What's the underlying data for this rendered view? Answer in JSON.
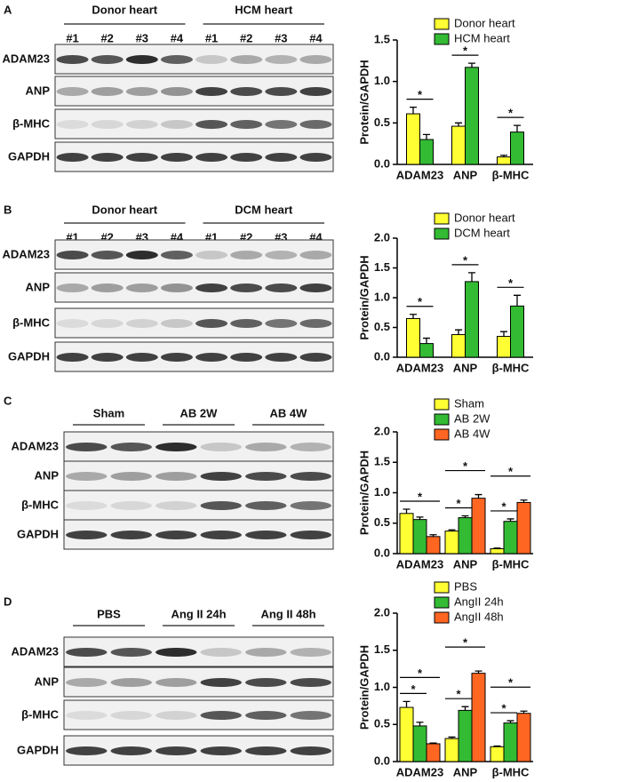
{
  "panels": [
    {
      "label": "A",
      "blot": {
        "groups": [
          "Donor heart",
          "HCM heart"
        ],
        "lanes": [
          "#1",
          "#2",
          "#3",
          "#4",
          "#1",
          "#2",
          "#3",
          "#4"
        ],
        "rows": [
          "ADAM23",
          "ANP",
          "β-MHC",
          "GAPDH"
        ]
      }
    },
    {
      "label": "B",
      "blot": {
        "groups": [
          "Donor heart",
          "DCM heart"
        ],
        "lanes": [
          "#1",
          "#2",
          "#3",
          "#4",
          "#1",
          "#2",
          "#3",
          "#4"
        ],
        "rows": [
          "ADAM23",
          "ANP",
          "β-MHC",
          "GAPDH"
        ]
      }
    },
    {
      "label": "C",
      "blot": {
        "groups": [
          "Sham",
          "AB 2W",
          "AB 4W"
        ],
        "rows": [
          "ADAM23",
          "ANP",
          "β-MHC",
          "GAPDH"
        ]
      }
    },
    {
      "label": "D",
      "blot": {
        "groups": [
          "PBS",
          "Ang II 24h",
          "Ang II 48h"
        ],
        "rows": [
          "ADAM23",
          "ANP",
          "β-MHC",
          "GAPDH"
        ]
      }
    }
  ],
  "chart_data": [
    {
      "type": "bar",
      "y_label": "Protein/GAPDH",
      "categories": [
        "ADAM23",
        "ANP",
        "β-MHC"
      ],
      "ylim": [
        0,
        1.5
      ],
      "yticks": [
        {
          "value": 0,
          "label": "0.0"
        },
        {
          "value": 0.5,
          "label": "0.5"
        },
        {
          "value": 1,
          "label": "1.0"
        },
        {
          "value": 1.5,
          "label": "1.5"
        }
      ],
      "series": [
        {
          "name": "Donor heart",
          "color": "#ffff33",
          "values": [
            0.61,
            0.46,
            0.09
          ],
          "errors": [
            0.08,
            0.04,
            0.02
          ]
        },
        {
          "name": "HCM heart",
          "color": "#33bb33",
          "values": [
            0.3,
            1.17,
            0.39
          ],
          "errors": [
            0.06,
            0.05,
            0.08
          ]
        }
      ],
      "annotations": [
        {
          "text": "*",
          "category": "ADAM23",
          "between": [
            "Donor heart",
            "HCM heart"
          ]
        },
        {
          "text": "*",
          "category": "ANP",
          "between": [
            "Donor heart",
            "HCM heart"
          ]
        },
        {
          "text": "*",
          "category": "β-MHC",
          "between": [
            "Donor heart",
            "HCM heart"
          ]
        }
      ]
    },
    {
      "type": "bar",
      "y_label": "Protein/GAPDH",
      "categories": [
        "ADAM23",
        "ANP",
        "β-MHC"
      ],
      "ylim": [
        0,
        2
      ],
      "yticks": [
        {
          "value": 0,
          "label": "0.0"
        },
        {
          "value": 0.5,
          "label": "0.5"
        },
        {
          "value": 1,
          "label": "1.0"
        },
        {
          "value": 1.5,
          "label": "1.5"
        },
        {
          "value": 2,
          "label": "2.0"
        }
      ],
      "series": [
        {
          "name": "Donor heart",
          "color": "#ffff33",
          "values": [
            0.65,
            0.38,
            0.35
          ],
          "errors": [
            0.07,
            0.08,
            0.08
          ]
        },
        {
          "name": "DCM heart",
          "color": "#33bb33",
          "values": [
            0.23,
            1.27,
            0.86
          ],
          "errors": [
            0.09,
            0.15,
            0.18
          ]
        }
      ],
      "annotations": [
        {
          "text": "*",
          "category": "ADAM23",
          "between": [
            "Donor heart",
            "DCM heart"
          ]
        },
        {
          "text": "*",
          "category": "ANP",
          "between": [
            "Donor heart",
            "DCM heart"
          ]
        },
        {
          "text": "*",
          "category": "β-MHC",
          "between": [
            "Donor heart",
            "DCM heart"
          ]
        }
      ]
    },
    {
      "type": "bar",
      "y_label": "Protein/GAPDH",
      "categories": [
        "ADAM23",
        "ANP",
        "β-MHC"
      ],
      "ylim": [
        0,
        2
      ],
      "yticks": [
        {
          "value": 0,
          "label": "0.0"
        },
        {
          "value": 0.5,
          "label": "0.5"
        },
        {
          "value": 1,
          "label": "1.0"
        },
        {
          "value": 1.5,
          "label": "1.5"
        },
        {
          "value": 2,
          "label": "2.0"
        }
      ],
      "series": [
        {
          "name": "Sham",
          "color": "#ffff33",
          "values": [
            0.66,
            0.37,
            0.08
          ],
          "errors": [
            0.07,
            0.02,
            0.01
          ]
        },
        {
          "name": "AB 2W",
          "color": "#33bb33",
          "values": [
            0.56,
            0.59,
            0.53
          ],
          "errors": [
            0.04,
            0.03,
            0.04
          ]
        },
        {
          "name": "AB 4W",
          "color": "#ff6622",
          "values": [
            0.28,
            0.91,
            0.84
          ],
          "errors": [
            0.03,
            0.06,
            0.04
          ]
        }
      ],
      "annotations": [
        {
          "text": "*",
          "category": "ADAM23",
          "between": [
            "Sham",
            "AB 4W"
          ]
        },
        {
          "text": "*",
          "category": "ANP",
          "between": [
            "Sham",
            "AB 2W"
          ]
        },
        {
          "text": "*",
          "category": "ANP",
          "between": [
            "Sham",
            "AB 4W"
          ]
        },
        {
          "text": "*",
          "category": "β-MHC",
          "between": [
            "Sham",
            "AB 2W"
          ]
        },
        {
          "text": "*",
          "category": "β-MHC",
          "between": [
            "Sham",
            "AB 4W"
          ]
        }
      ]
    },
    {
      "type": "bar",
      "y_label": "Protein/GAPDH",
      "categories": [
        "ADAM23",
        "ANP",
        "β-MHC"
      ],
      "ylim": [
        0,
        2
      ],
      "yticks": [
        {
          "value": 0,
          "label": "0.0"
        },
        {
          "value": 0.5,
          "label": "0.5"
        },
        {
          "value": 1,
          "label": "1.0"
        },
        {
          "value": 1.5,
          "label": "1.5"
        },
        {
          "value": 2,
          "label": "2.0"
        }
      ],
      "series": [
        {
          "name": "PBS",
          "color": "#ffff33",
          "values": [
            0.73,
            0.31,
            0.2
          ],
          "errors": [
            0.08,
            0.02,
            0.01
          ]
        },
        {
          "name": "AngII 24h",
          "color": "#33bb33",
          "values": [
            0.48,
            0.69,
            0.52
          ],
          "errors": [
            0.05,
            0.05,
            0.03
          ]
        },
        {
          "name": "AngII 48h",
          "color": "#ff6622",
          "values": [
            0.24,
            1.19,
            0.65
          ],
          "errors": [
            0.01,
            0.03,
            0.03
          ]
        }
      ],
      "annotations": [
        {
          "text": "*",
          "category": "ADAM23",
          "between": [
            "PBS",
            "AngII 24h"
          ]
        },
        {
          "text": "*",
          "category": "ADAM23",
          "between": [
            "PBS",
            "AngII 48h"
          ]
        },
        {
          "text": "*",
          "category": "ANP",
          "between": [
            "PBS",
            "AngII 24h"
          ]
        },
        {
          "text": "*",
          "category": "ANP",
          "between": [
            "PBS",
            "AngII 48h"
          ]
        },
        {
          "text": "*",
          "category": "β-MHC",
          "between": [
            "PBS",
            "AngII 24h"
          ]
        },
        {
          "text": "*",
          "category": "β-MHC",
          "between": [
            "PBS",
            "AngII 48h"
          ]
        }
      ]
    }
  ]
}
